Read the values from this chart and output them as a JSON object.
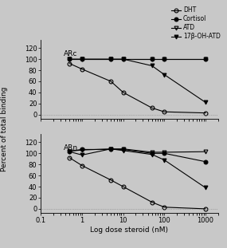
{
  "x_doses": [
    0.5,
    1,
    5,
    10,
    50,
    100,
    1000
  ],
  "ARc": {
    "DHT": [
      92,
      82,
      60,
      40,
      12,
      5,
      3
    ],
    "Cortisol": [
      100,
      100,
      100,
      100,
      100,
      100,
      100
    ],
    "ATD": [
      100,
      100,
      100,
      100,
      100,
      100,
      100
    ],
    "17bOHATD": [
      100,
      100,
      100,
      100,
      88,
      72,
      22
    ]
  },
  "ARn": {
    "DHT": [
      92,
      78,
      52,
      40,
      12,
      3,
      0
    ],
    "Cortisol": [
      104,
      107,
      107,
      107,
      100,
      100,
      85
    ],
    "ATD": [
      104,
      106,
      108,
      108,
      102,
      102,
      103
    ],
    "17bOHATD": [
      103,
      97,
      108,
      105,
      98,
      88,
      38
    ]
  },
  "bg_color": "#c8c8c8",
  "legend_labels": [
    "DHT",
    "Cortisol",
    "ATD",
    "17β-OH-ATD"
  ],
  "xlabel": "Log dose steroid (nM)",
  "ylabel": "Percent of total binding",
  "ylim": [
    -8,
    135
  ],
  "yticks": [
    0,
    20,
    40,
    60,
    80,
    100,
    120
  ],
  "xlim": [
    0.1,
    2000
  ]
}
